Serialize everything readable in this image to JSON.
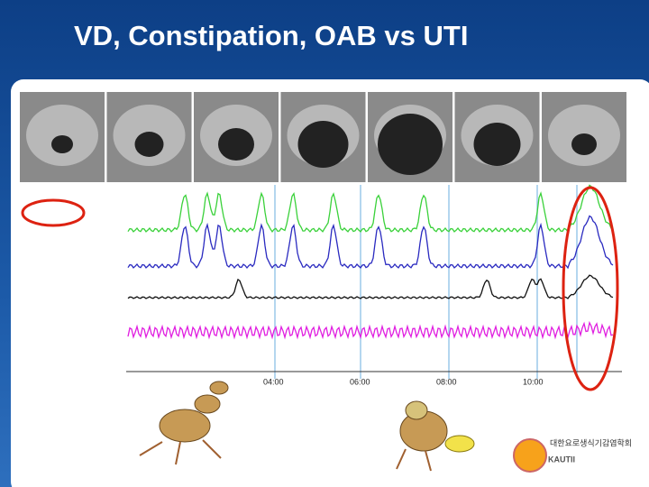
{
  "slide": {
    "title": "VD, Constipation, OAB vs UTI",
    "time_labels": [
      "04:00",
      "06:00",
      "08:00",
      "10:00"
    ],
    "logo": {
      "text": "KAUTII",
      "korean": "대한요로생식기감염학회"
    }
  }
}
